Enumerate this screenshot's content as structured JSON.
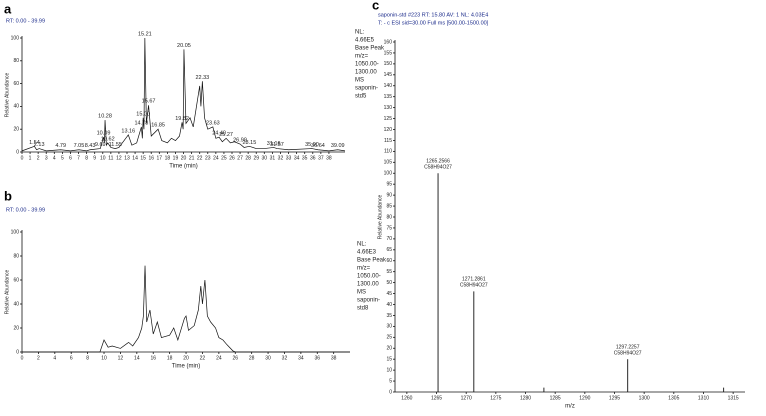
{
  "chart_data": [
    {
      "type": "line",
      "panel": "a",
      "header": [
        "RT: 0.00 - 39.99"
      ],
      "note": [
        "NL:",
        "4.66E5",
        "Base Peak",
        "m/z=",
        "1050.00-",
        "1300.00",
        "MS",
        "saponin-",
        "std5"
      ],
      "xlabel": "Time (min)",
      "ylabel": "Relative Abundance",
      "color": "#111111",
      "xlim": [
        0,
        39.99
      ],
      "ylim": [
        0,
        100
      ],
      "xticks": [
        0,
        1,
        2,
        3,
        4,
        5,
        6,
        7,
        8,
        9,
        10,
        11,
        12,
        13,
        14,
        15,
        16,
        17,
        18,
        19,
        20,
        21,
        22,
        23,
        24,
        25,
        26,
        27,
        28,
        29,
        30,
        31,
        32,
        33,
        34,
        35,
        36,
        37,
        38
      ],
      "yticks": [
        0,
        20,
        40,
        60,
        80,
        100
      ],
      "x": [
        0,
        1.54,
        1.8,
        2.13,
        3,
        4.79,
        6,
        7.05,
        8,
        8.43,
        9.69,
        10.09,
        10.2,
        10.28,
        10.45,
        10.62,
        11,
        11.55,
        12,
        13.16,
        13.6,
        14.2,
        14.78,
        14.9,
        15.0,
        15.1,
        15.21,
        15.4,
        15.67,
        16,
        16.85,
        17.3,
        18,
        18.5,
        19,
        19.5,
        19.82,
        19.95,
        20.05,
        20.3,
        20.8,
        21.2,
        21.6,
        22.0,
        22.15,
        22.33,
        22.6,
        23.0,
        23.63,
        24.0,
        24.4,
        24.8,
        25.27,
        25.8,
        26.3,
        26.99,
        27.5,
        28.15,
        29,
        30,
        31.16,
        31.57,
        33,
        35.9,
        36.64,
        38,
        39.09,
        39.99
      ],
      "values": [
        1,
        5,
        2,
        3,
        1,
        2,
        1,
        2,
        1,
        2,
        3,
        13,
        8,
        28,
        6,
        8,
        4,
        3,
        4,
        15,
        6,
        8,
        22,
        12,
        30,
        20,
        100,
        25,
        41,
        14,
        20,
        10,
        8,
        12,
        10,
        14,
        26,
        20,
        90,
        25,
        30,
        22,
        40,
        58,
        40,
        62,
        30,
        20,
        22,
        12,
        13,
        9,
        12,
        8,
        9,
        7,
        4,
        5,
        3,
        3,
        4,
        3,
        2,
        3,
        2,
        1,
        2,
        1
      ],
      "annotations": [
        {
          "text": "1.54",
          "x": 1.54,
          "y": 5
        },
        {
          "text": "2.13",
          "x": 2.13,
          "y": 3
        },
        {
          "text": "4.79",
          "x": 4.79,
          "y": 2
        },
        {
          "text": "7.05",
          "x": 7.05,
          "y": 2
        },
        {
          "text": "8.43",
          "x": 8.43,
          "y": 2
        },
        {
          "text": "9.69",
          "x": 9.69,
          "y": 3
        },
        {
          "text": "10.09",
          "x": 10.09,
          "y": 13
        },
        {
          "text": "10.28",
          "x": 10.28,
          "y": 28
        },
        {
          "text": "10.62",
          "x": 10.62,
          "y": 8
        },
        {
          "text": "11.55",
          "x": 11.55,
          "y": 3
        },
        {
          "text": "13.16",
          "x": 13.16,
          "y": 15
        },
        {
          "text": "14.78",
          "x": 14.78,
          "y": 22
        },
        {
          "text": "15.00",
          "x": 15.0,
          "y": 30
        },
        {
          "text": "15.21",
          "x": 15.21,
          "y": 100
        },
        {
          "text": "15.67",
          "x": 15.67,
          "y": 41
        },
        {
          "text": "16.85",
          "x": 16.85,
          "y": 20
        },
        {
          "text": "19.82",
          "x": 19.82,
          "y": 26
        },
        {
          "text": "20.05",
          "x": 20.05,
          "y": 90
        },
        {
          "text": "22.33",
          "x": 22.33,
          "y": 62
        },
        {
          "text": "23.63",
          "x": 23.63,
          "y": 22
        },
        {
          "text": "24.40",
          "x": 24.4,
          "y": 13
        },
        {
          "text": "25.27",
          "x": 25.27,
          "y": 12
        },
        {
          "text": "26.99",
          "x": 26.99,
          "y": 7
        },
        {
          "text": "28.15",
          "x": 28.15,
          "y": 5
        },
        {
          "text": "31.16",
          "x": 31.16,
          "y": 4
        },
        {
          "text": "31.57",
          "x": 31.57,
          "y": 3
        },
        {
          "text": "35.90",
          "x": 35.9,
          "y": 3
        },
        {
          "text": "36.64",
          "x": 36.64,
          "y": 2
        },
        {
          "text": "39.09",
          "x": 39.09,
          "y": 2
        }
      ]
    },
    {
      "type": "line",
      "panel": "b",
      "header": [
        "RT: 0.00 - 39.99"
      ],
      "note": [
        "NL:",
        "4.66E3",
        "Base Peak",
        "m/z=",
        "1050.00-",
        "1300.00",
        "MS",
        "saponin-",
        "std8"
      ],
      "xlabel": "Time (min)",
      "ylabel": "Relative Abundance",
      "color": "#111111",
      "xlim": [
        0,
        39.99
      ],
      "ylim": [
        0,
        100
      ],
      "xticks": [
        0,
        2,
        4,
        6,
        8,
        10,
        12,
        14,
        16,
        18,
        20,
        22,
        24,
        26,
        28,
        30,
        32,
        34,
        36,
        38
      ],
      "yticks": [
        0,
        20,
        40,
        60,
        80,
        100
      ],
      "x": [
        0,
        9.5,
        10,
        10.5,
        11,
        12,
        13,
        13.5,
        14.2,
        14.6,
        14.8,
        15.0,
        15.2,
        15.6,
        16,
        16.5,
        17,
        18,
        18.5,
        19,
        19.8,
        20.0,
        20.3,
        21,
        21.5,
        21.8,
        22.0,
        22.3,
        22.6,
        23,
        23.6,
        24,
        24.5,
        25,
        25.7,
        26,
        39.99
      ],
      "values": [
        0,
        0,
        10,
        4,
        5,
        3,
        8,
        5,
        12,
        20,
        30,
        72,
        25,
        35,
        15,
        25,
        12,
        14,
        20,
        10,
        28,
        30,
        18,
        22,
        35,
        55,
        40,
        60,
        30,
        25,
        20,
        12,
        10,
        6,
        1,
        0,
        0
      ],
      "annotations": []
    },
    {
      "type": "stick",
      "panel": "c",
      "header": [
        "saponin-std #223 RT: 15.80 AV: 1 NL: 4.03E4",
        "T: - c ESI sid=30.00 Full ms [500.00-1500.00]"
      ],
      "note": [],
      "xlabel": "m/z",
      "ylabel": "Relative Abundance",
      "color": "#111111",
      "xlim": [
        1258,
        1317
      ],
      "ylim": [
        0,
        160
      ],
      "xticks": [
        1260,
        1265,
        1270,
        1275,
        1280,
        1285,
        1290,
        1295,
        1300,
        1305,
        1310,
        1315
      ],
      "yticks": [
        0,
        5,
        10,
        15,
        20,
        25,
        30,
        35,
        40,
        45,
        50,
        55,
        60,
        65,
        70,
        75,
        80,
        85,
        90,
        95,
        100,
        105,
        110,
        115,
        120,
        125,
        130,
        135,
        140,
        145,
        150,
        155,
        160
      ],
      "x": [
        1265.2566,
        1271.2861,
        1283.1,
        1297.2257,
        1313.4
      ],
      "values": [
        100,
        46,
        2,
        15,
        2
      ],
      "annotations": [
        {
          "text": "1265.2566",
          "formula": "C58H94O27",
          "x": 1265.2566,
          "y": 100
        },
        {
          "text": "1271.2861",
          "formula": "C58H94O27",
          "x": 1271.2861,
          "y": 46
        },
        {
          "text": "1297.2257",
          "formula": "C58H94O27",
          "x": 1297.2257,
          "y": 15
        }
      ]
    }
  ]
}
